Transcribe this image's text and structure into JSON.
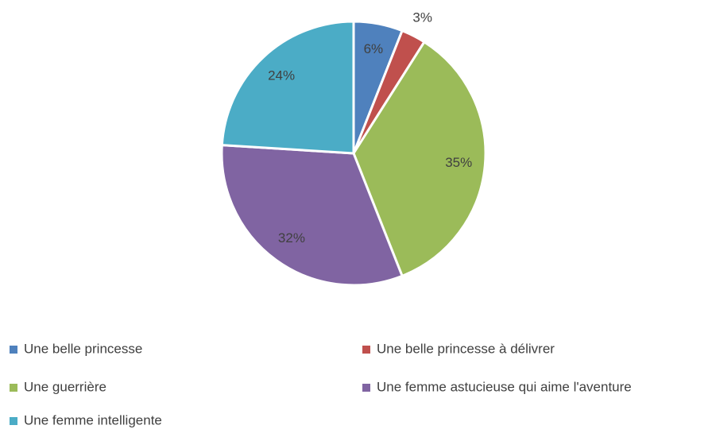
{
  "chart_data": {
    "type": "pie",
    "categories": [
      "Une belle princesse",
      "Une belle princesse à délivrer",
      "Une guerrière",
      "Une femme astucieuse qui aime l'aventure",
      "Une femme intelligente"
    ],
    "values": [
      6,
      3,
      35,
      32,
      24
    ],
    "value_labels": [
      "6%",
      "3%",
      "35%",
      "32%",
      "24%"
    ],
    "colors": [
      "#4f81bd",
      "#c0504d",
      "#9bbb59",
      "#8064a2",
      "#4bacc6"
    ],
    "legend": "bottom"
  }
}
